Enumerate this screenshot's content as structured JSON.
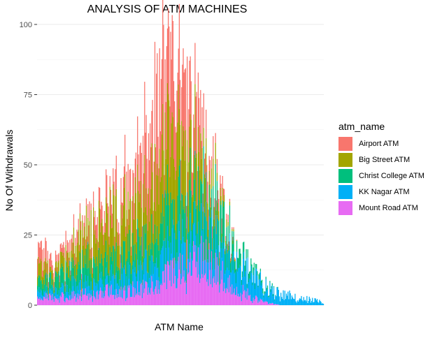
{
  "chart_data": {
    "type": "bar",
    "stacked": true,
    "title": "ANALYSIS OF ATM MACHINES",
    "xlabel": "ATM Name",
    "ylabel": "No Of Withdrawals",
    "ylim": [
      0,
      108
    ],
    "yticks": [
      0,
      25,
      50,
      75,
      100
    ],
    "x_tick_labels": "none",
    "grid": true,
    "legend": {
      "title": "atm_name",
      "position": "right"
    },
    "series": [
      {
        "name": "Airport ATM",
        "color": "#F8766D"
      },
      {
        "name": "Big Street ATM",
        "color": "#A3A500"
      },
      {
        "name": "Christ College ATM",
        "color": "#00BF7D"
      },
      {
        "name": "KK Nagar ATM",
        "color": "#00B0F6"
      },
      {
        "name": "Mount Road ATM",
        "color": "#E76BF3"
      }
    ],
    "profile_x": [
      0,
      4,
      8,
      15,
      20,
      25,
      30,
      35,
      40,
      45,
      50,
      55,
      60,
      65,
      70,
      75,
      80,
      85,
      90,
      95,
      100
    ],
    "profile_y": [
      [
        8,
        4,
        3,
        4,
        5,
        7,
        9,
        12,
        22,
        32,
        24,
        16,
        8,
        3,
        0,
        0,
        0,
        0,
        0,
        0,
        0
      ],
      [
        7,
        3,
        4,
        10,
        13,
        14,
        16,
        17,
        18,
        26,
        22,
        16,
        8,
        3,
        0,
        0,
        0,
        0,
        0,
        0,
        0
      ],
      [
        5,
        4,
        5,
        8,
        8,
        7,
        7,
        10,
        10,
        14,
        16,
        16,
        14,
        10,
        5,
        2,
        1,
        0,
        0,
        0,
        0
      ],
      [
        3,
        2,
        3,
        4,
        5,
        5,
        6,
        7,
        8,
        9,
        10,
        11,
        10,
        10,
        10,
        8,
        5,
        4,
        3,
        2,
        1
      ],
      [
        4,
        3,
        3,
        4,
        4,
        5,
        5,
        6,
        7,
        10,
        14,
        17,
        15,
        10,
        6,
        3,
        1,
        0,
        0,
        0,
        0
      ]
    ],
    "notes": "Daily withdrawal counts (~364 days) per ATM, stacked; typical stacked levels per series sampled across the x range (percent of axis width), individual day bars vary around these."
  }
}
